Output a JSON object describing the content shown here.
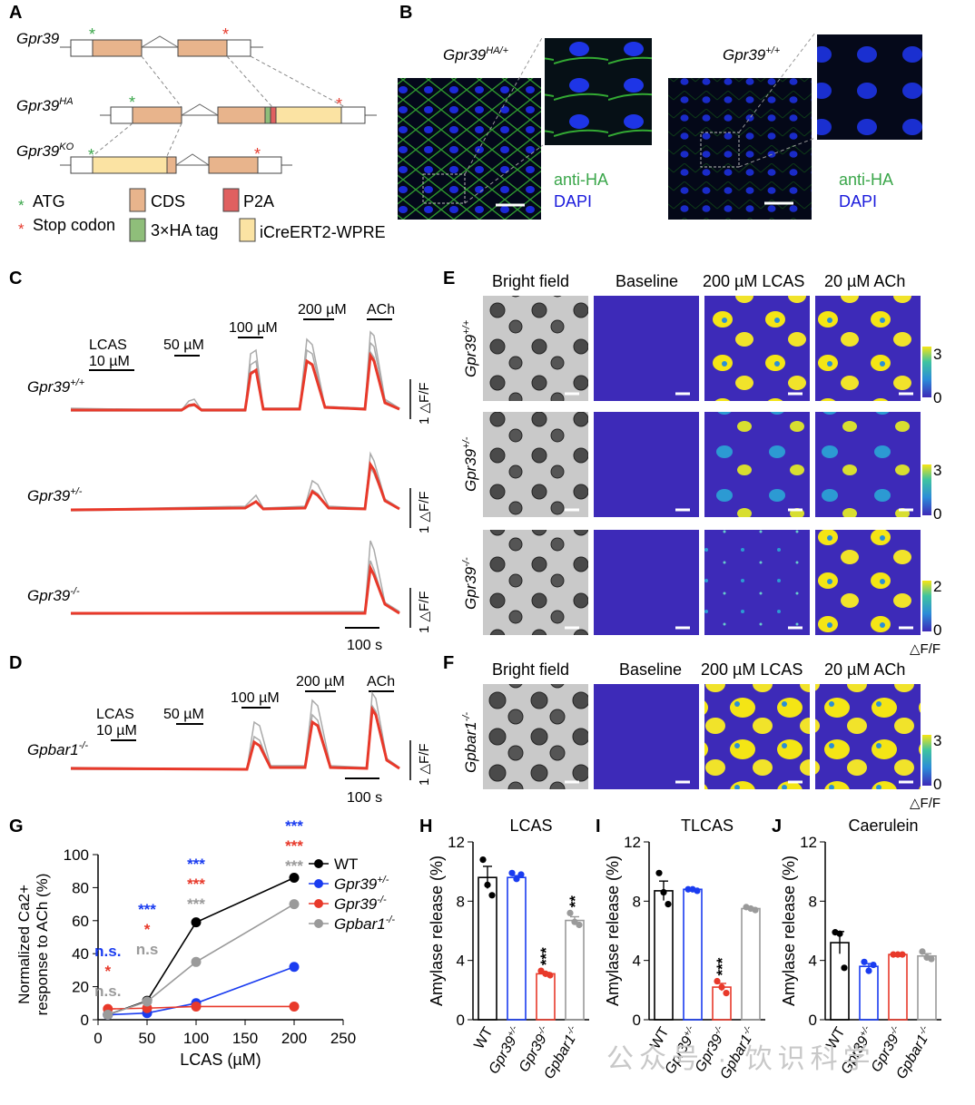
{
  "panel_labels": {
    "A": "A",
    "B": "B",
    "C": "C",
    "D": "D",
    "E": "E",
    "F": "F",
    "G": "G",
    "H": "H",
    "I": "I",
    "J": "J"
  },
  "panel_a": {
    "genes": [
      "Gpr39",
      "Gpr39HA",
      "Gpr39KO"
    ],
    "gene_base": [
      "Gpr39",
      "Gpr39",
      "Gpr39"
    ],
    "gene_sup": [
      "",
      "HA",
      "KO"
    ],
    "legend": {
      "atg": "ATG",
      "stop": "Stop codon",
      "cds": "CDS",
      "ha": "3×HA tag",
      "p2a": "P2A",
      "cre": "iCreERT2-WPRE"
    },
    "colors": {
      "atg": "#3aa64a",
      "stop": "#e63b2e",
      "cds": "#e8b48c",
      "ha": "#8fbe7a",
      "p2a": "#e06060",
      "cre": "#fbe3a3"
    }
  },
  "panel_b": {
    "left_title_base": "Gpr39",
    "left_title_sup": "HA/+",
    "right_title_base": "Gpr39",
    "right_title_sup": "+/+",
    "stain1": "anti-HA",
    "stain2": "DAPI"
  },
  "panel_c": {
    "genotypes_base": [
      "Gpr39",
      "Gpr39",
      "Gpr39"
    ],
    "genotypes_sup": [
      "+/+",
      "+/-",
      "-/-"
    ],
    "stim": [
      "LCAS",
      "10 µM",
      "50 µM",
      "100 µM",
      "200 µM",
      "ACh"
    ],
    "scale_x": "100 s",
    "scale_y": "1 △F/F"
  },
  "panel_d": {
    "genotype_base": "Gpbar1",
    "genotype_sup": "-/-",
    "stim": [
      "LCAS",
      "10 µM",
      "50 µM",
      "100 µM",
      "200 µM",
      "ACh"
    ],
    "scale_x": "100 s",
    "scale_y": "1 △F/F"
  },
  "panel_e": {
    "columns": [
      "Bright field",
      "Baseline",
      "200 µM LCAS",
      "20 µM ACh"
    ],
    "rows_base": [
      "Gpr39",
      "Gpr39",
      "Gpr39"
    ],
    "rows_sup": [
      "+/+",
      "+/-",
      "-/-"
    ],
    "cbar_max": [
      "3",
      "3",
      "2"
    ],
    "cbar_min": "0",
    "cbar_unit": "△F/F"
  },
  "panel_f": {
    "columns": [
      "Bright field",
      "Baseline",
      "200 µM LCAS",
      "20 µM ACh"
    ],
    "row_base": "Gpbar1",
    "row_sup": "-/-",
    "cbar_max": "3",
    "cbar_min": "0",
    "cbar_unit": "△F/F"
  },
  "chart_data": [
    {
      "type": "line",
      "panel": "G",
      "ylabel": "Normalized Ca2+ response to ACh (%)",
      "xlabel": "LCAS (µM)",
      "xlim": [
        0,
        250
      ],
      "ylim": [
        0,
        100
      ],
      "xticks": [
        0,
        50,
        100,
        150,
        200,
        250
      ],
      "yticks": [
        0,
        20,
        40,
        60,
        80,
        100
      ],
      "x": [
        10,
        50,
        100,
        200
      ],
      "series": [
        {
          "name": "WT",
          "color": "#000000",
          "values": [
            3,
            11.5,
            59,
            86
          ]
        },
        {
          "name": "Gpr39+/-",
          "color": "#1a3cf0",
          "values": [
            3,
            4,
            10,
            32
          ]
        },
        {
          "name": "Gpr39-/-",
          "color": "#e8392a",
          "values": [
            6.5,
            7,
            8,
            8
          ]
        },
        {
          "name": "Gpbar1-/-",
          "color": "#9a9a9a",
          "values": [
            3,
            11,
            35,
            70
          ]
        }
      ],
      "significance": [
        {
          "x": 10,
          "labels": [
            "n.s.",
            "*",
            "n.s."
          ]
        },
        {
          "x": 50,
          "labels": [
            "***",
            "*",
            "n.s"
          ]
        },
        {
          "x": 100,
          "labels": [
            "***",
            "***",
            "***"
          ]
        },
        {
          "x": 200,
          "labels": [
            "***",
            "***",
            "***"
          ]
        }
      ]
    },
    {
      "type": "bar",
      "panel": "H",
      "title": "LCAS",
      "ylabel": "Amylase release (%)",
      "ylim": [
        0,
        12
      ],
      "yticks": [
        0,
        4,
        8,
        12
      ],
      "categories": [
        "WT",
        "Gpr39+/-",
        "Gpr39-/-",
        "Gpbar1-/-"
      ],
      "values": [
        9.6,
        9.6,
        3.1,
        6.7
      ],
      "points": [
        [
          10.8,
          9.1,
          8.4
        ],
        [
          9.9,
          9.5,
          9.8
        ],
        [
          3.3,
          3.1,
          3.0
        ],
        [
          7.2,
          6.6,
          6.4
        ]
      ],
      "stars": [
        "",
        "",
        "***",
        "**"
      ]
    },
    {
      "type": "bar",
      "panel": "I",
      "title": "TLCAS",
      "ylabel": "Amylase release (%)",
      "ylim": [
        0,
        12
      ],
      "yticks": [
        0,
        4,
        8,
        12
      ],
      "categories": [
        "WT",
        "Gpr39+/-",
        "Gpr39-/-",
        "Gpbar1-/-"
      ],
      "values": [
        8.7,
        8.8,
        2.2,
        7.5
      ],
      "points": [
        [
          9.9,
          8.6,
          7.8
        ],
        [
          8.8,
          8.8,
          8.7
        ],
        [
          2.6,
          2.2,
          1.8
        ],
        [
          7.6,
          7.5,
          7.4
        ]
      ],
      "stars": [
        "",
        "",
        "***",
        ""
      ]
    },
    {
      "type": "bar",
      "panel": "J",
      "title": "Caerulein",
      "ylabel": "Amylase release (%)",
      "ylim": [
        0,
        12
      ],
      "yticks": [
        0,
        4,
        8,
        12
      ],
      "categories": [
        "WT",
        "Gpr39+/-",
        "Gpr39-/-",
        "Gpbar1-/-"
      ],
      "values": [
        5.2,
        3.6,
        4.4,
        4.3
      ],
      "points": [
        [
          5.9,
          5.8,
          3.5
        ],
        [
          3.9,
          3.3,
          3.7
        ],
        [
          4.4,
          4.4,
          4.4
        ],
        [
          4.6,
          4.2,
          4.1
        ]
      ],
      "stars": [
        "",
        "",
        "",
        ""
      ]
    }
  ],
  "bar_colors": [
    "#000000",
    "#1a3cf0",
    "#e8392a",
    "#9a9a9a"
  ],
  "watermark": "公众号 · 饮识科学"
}
